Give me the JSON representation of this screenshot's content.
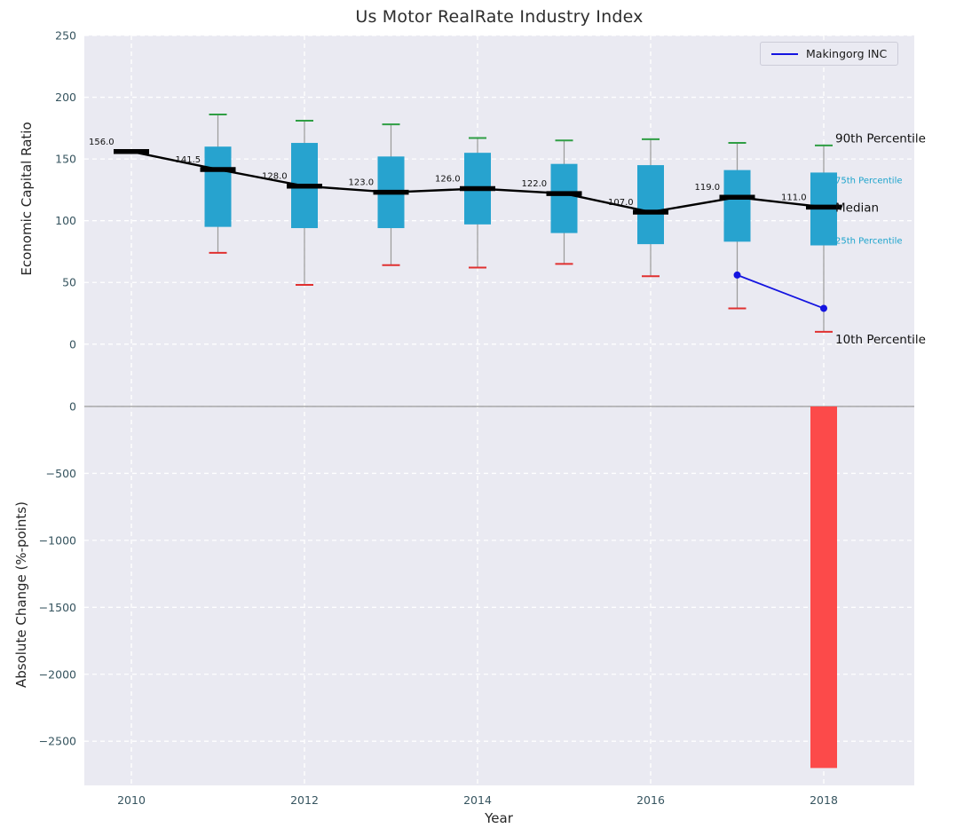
{
  "title": "Us Motor RealRate Industry Index",
  "legend": {
    "label": "Makingorg INC",
    "color": "#1414e0"
  },
  "axes": {
    "x_label": "Year",
    "top_y_label": "Economic Capital Ratio",
    "bottom_y_label": "Absolute Change (%-points)",
    "x_ticks": [
      2010,
      2012,
      2014,
      2016,
      2018
    ],
    "top_y_ticks": [
      0,
      50,
      100,
      150,
      200,
      250
    ],
    "bottom_y_ticks": [
      0,
      -500,
      -1000,
      -1500,
      -2000,
      -2500
    ]
  },
  "chart_data": [
    {
      "type": "boxplot",
      "panel": "top",
      "title": "Us Motor RealRate Industry Index",
      "ylabel": "Economic Capital Ratio",
      "ylim": [
        -48,
        250
      ],
      "yticks": [
        0,
        50,
        100,
        150,
        200,
        250
      ],
      "grid": true,
      "categories": [
        2010,
        2011,
        2012,
        2013,
        2014,
        2015,
        2016,
        2017,
        2018
      ],
      "median": [
        156.0,
        141.5,
        128.0,
        123.0,
        126.0,
        122.0,
        107.0,
        119.0,
        111.0
      ],
      "median_labels": [
        "156.0",
        "141.5",
        "128.0",
        "123.0",
        "126.0",
        "122.0",
        "107.0",
        "119.0",
        "111.0"
      ],
      "q1": [
        null,
        95,
        94,
        94,
        97,
        90,
        81,
        83,
        80
      ],
      "q3": [
        null,
        160,
        163,
        152,
        155,
        146,
        145,
        141,
        139
      ],
      "p10": [
        null,
        74,
        48,
        64,
        62,
        65,
        55,
        29,
        10
      ],
      "p90": [
        null,
        186,
        181,
        178,
        167,
        165,
        166,
        163,
        161
      ],
      "series": [
        {
          "name": "Makingorg INC",
          "x": [
            2017,
            2018
          ],
          "y": [
            56,
            29
          ],
          "color": "#1414e0"
        }
      ],
      "annotations": [
        {
          "text": "90th Percentile",
          "value": 167,
          "color": "#111111",
          "size": 13.5
        },
        {
          "text": "75th Percentile",
          "value": 134,
          "color": "#1ba3cc",
          "size": 10
        },
        {
          "text": "Median",
          "value": 111,
          "color": "#111111",
          "size": 13.5
        },
        {
          "text": "25th Percentile",
          "value": 85,
          "color": "#1ba3cc",
          "size": 10
        },
        {
          "text": "10th Percentile",
          "value": 4,
          "color": "#111111",
          "size": 13.5
        }
      ],
      "colors": {
        "box": "#27a3cf",
        "cap_top": "#2f9e44",
        "cap_bottom": "#e03030",
        "median": "#000000",
        "whisker": "#9a9a9a",
        "background": "#eaeaf2",
        "gridline": "#ffffff"
      }
    },
    {
      "type": "bar",
      "panel": "bottom",
      "ylabel": "Absolute Change (%-points)",
      "ylim": [
        -2830,
        20
      ],
      "yticks": [
        0,
        -500,
        -1000,
        -1500,
        -2000,
        -2500
      ],
      "grid": true,
      "x": [
        2018
      ],
      "values": [
        -2700
      ],
      "bar_color": "#fc4a4a",
      "zero_line_color": "#999999",
      "background": "#eaeaf2"
    }
  ],
  "tick_label_color": "#36545f"
}
